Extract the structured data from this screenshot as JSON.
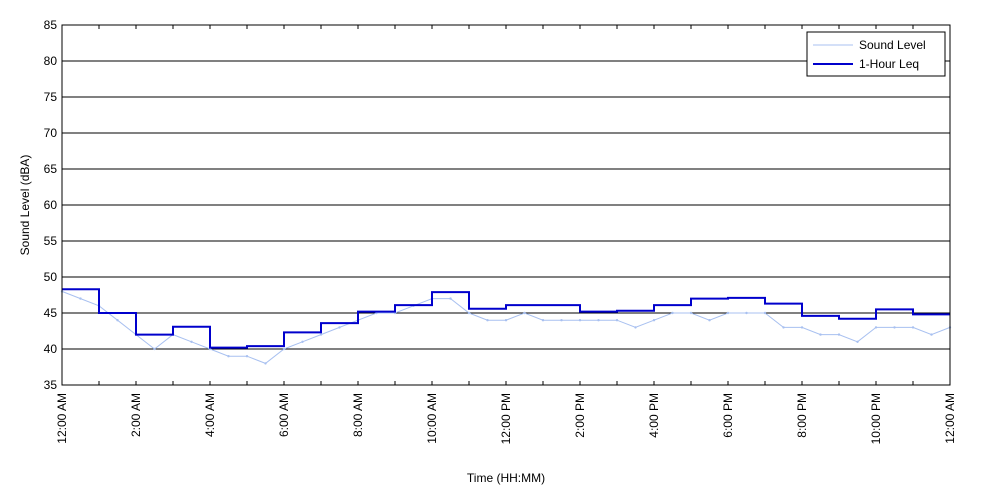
{
  "chart_data": {
    "type": "line",
    "title": "",
    "xlabel": "Time (HH:MM)",
    "ylabel": "Sound Level (dBA)",
    "ylim": [
      35,
      85
    ],
    "y_ticks": [
      35,
      40,
      45,
      50,
      55,
      60,
      65,
      70,
      75,
      80,
      85
    ],
    "xlim_hours": [
      0,
      24
    ],
    "x_tick_labels": [
      "12:00 AM",
      "2:00 AM",
      "4:00 AM",
      "6:00 AM",
      "8:00 AM",
      "10:00 AM",
      "12:00 PM",
      "2:00 PM",
      "4:00 PM",
      "6:00 PM",
      "8:00 PM",
      "10:00 PM",
      "12:00 AM"
    ],
    "grid": "horizontal",
    "legend": "top-right",
    "series": [
      {
        "name": "Sound Level",
        "color": "#a8c0f0",
        "style": "thin fluctuating line",
        "x_hours": [
          0,
          0.5,
          1,
          1.5,
          2,
          2.5,
          3,
          3.5,
          4,
          4.5,
          5,
          5.5,
          6,
          6.5,
          7,
          7.5,
          8,
          8.5,
          9,
          9.5,
          10,
          10.5,
          11,
          11.5,
          12,
          12.5,
          13,
          13.5,
          14,
          14.5,
          15,
          15.5,
          16,
          16.5,
          17,
          17.5,
          18,
          18.5,
          19,
          19.5,
          20,
          20.5,
          21,
          21.5,
          22,
          22.5,
          23,
          23.5,
          24
        ],
        "values": [
          48.0,
          47.0,
          46.0,
          44.0,
          42.0,
          40.0,
          42.0,
          41.0,
          40.0,
          39.0,
          39.0,
          38.0,
          40.0,
          41.0,
          42.0,
          43.0,
          44.0,
          45.0,
          45.0,
          46.0,
          47.0,
          47.0,
          45.0,
          44.0,
          44.0,
          45.0,
          44.0,
          44.0,
          44.0,
          44.0,
          44.0,
          43.0,
          44.0,
          45.0,
          45.0,
          44.0,
          45.0,
          45.0,
          45.0,
          43.0,
          43.0,
          42.0,
          42.0,
          41.0,
          43.0,
          43.0,
          43.0,
          42.0,
          43.0
        ]
      },
      {
        "name": "1-Hour Leq",
        "color": "#0000cc",
        "style": "step",
        "x_hours": [
          0,
          1,
          2,
          3,
          4,
          5,
          6,
          7,
          8,
          9,
          10,
          11,
          12,
          13,
          14,
          15,
          16,
          17,
          18,
          19,
          20,
          21,
          22,
          23
        ],
        "values": [
          48.3,
          45.0,
          42.0,
          43.1,
          40.2,
          40.4,
          42.3,
          43.6,
          45.2,
          46.1,
          47.9,
          45.6,
          46.1,
          46.1,
          45.2,
          45.3,
          46.1,
          47.0,
          47.1,
          46.3,
          44.6,
          44.2,
          45.5,
          44.8
        ]
      }
    ]
  }
}
